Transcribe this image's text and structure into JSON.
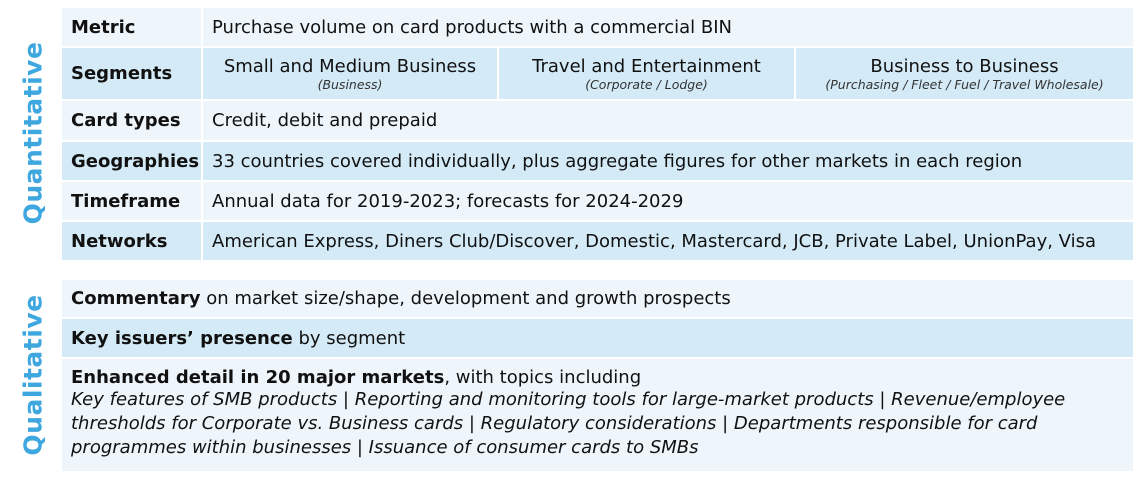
{
  "sections": {
    "quantitative": "Quantitative",
    "qualitative": "Qualitative"
  },
  "quantitative": {
    "metric": {
      "label": "Metric",
      "value": "Purchase volume on card products with a commercial BIN"
    },
    "segments": {
      "label": "Segments",
      "items": [
        {
          "name": "Small and Medium Business",
          "sub": "(Business)"
        },
        {
          "name": "Travel and Entertainment",
          "sub": "(Corporate / Lodge)"
        },
        {
          "name": "Business to Business",
          "sub": "(Purchasing / Fleet / Fuel / Travel Wholesale)"
        }
      ]
    },
    "card_types": {
      "label": "Card types",
      "value": "Credit, debit and prepaid"
    },
    "geographies": {
      "label": "Geographies",
      "value": "33 countries covered individually, plus aggregate figures for other markets in each region"
    },
    "timeframe": {
      "label": "Timeframe",
      "value": "Annual data for 2019-2023; forecasts for 2024-2029"
    },
    "networks": {
      "label": "Networks",
      "value": "American Express, Diners Club/Discover, Domestic, Mastercard, JCB, Private Label, UnionPay, Visa"
    }
  },
  "qualitative": {
    "commentary": {
      "bold": "Commentary",
      "rest": " on market size/shape, development and growth prospects"
    },
    "issuers": {
      "bold": "Key issuers’ presence",
      "rest": " by segment"
    },
    "enhanced": {
      "bold": "Enhanced detail in 20 major markets",
      "rest": ", with topics including",
      "topics": "Key features of SMB products | Reporting and monitoring tools for large-market products | Revenue/employee thresholds for Corporate vs. Business cards | Regulatory considerations | Departments responsible for card programmes within businesses | Issuance of consumer cards to SMBs"
    }
  }
}
